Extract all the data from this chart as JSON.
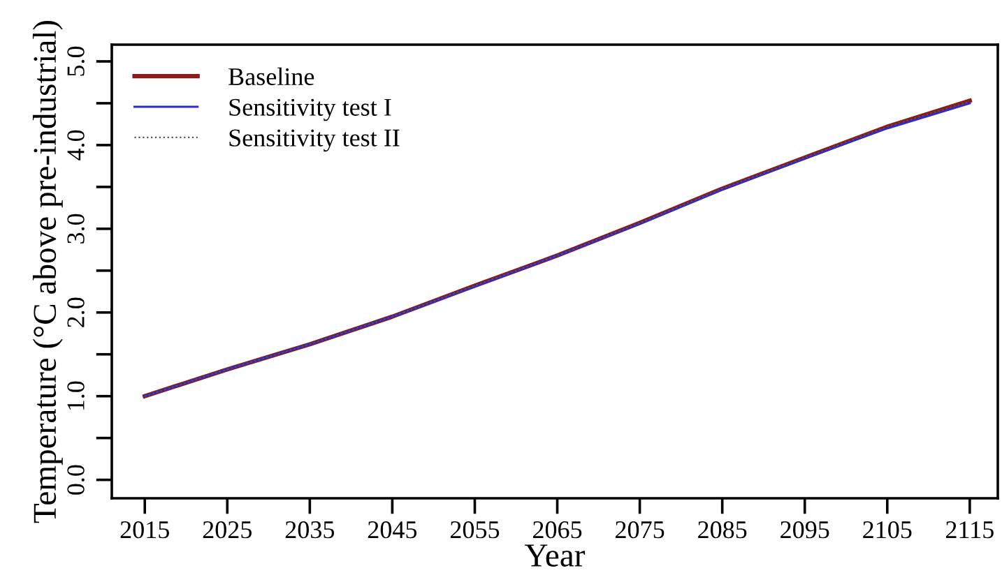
{
  "chart_data": {
    "type": "line",
    "xlabel": "Year",
    "ylabel": "Temperature (°C above pre-industrial)",
    "x": [
      2015,
      2025,
      2035,
      2045,
      2055,
      2065,
      2075,
      2085,
      2095,
      2105,
      2115
    ],
    "series": [
      {
        "name": "Baseline",
        "color": "#8b1a1a",
        "values": [
          1.0,
          1.32,
          1.62,
          1.95,
          2.32,
          2.68,
          3.07,
          3.48,
          3.85,
          4.22,
          4.53
        ]
      },
      {
        "name": "Sensitivity test I",
        "color": "#2a2ad0",
        "values": [
          1.0,
          1.32,
          1.62,
          1.95,
          2.31,
          2.68,
          3.06,
          3.47,
          3.84,
          4.2,
          4.5
        ]
      },
      {
        "name": "Sensitivity test II",
        "color": "#555555",
        "line_style": "dotted",
        "values": [
          1.0,
          1.32,
          1.62,
          1.95,
          2.32,
          2.68,
          3.07,
          3.48,
          3.85,
          4.22,
          4.52
        ]
      }
    ],
    "xlim": [
      2011,
      2118.4
    ],
    "ylim": [
      -0.22,
      5.2
    ],
    "xticks": [
      2015,
      2025,
      2035,
      2045,
      2055,
      2065,
      2075,
      2085,
      2095,
      2105,
      2115
    ],
    "yticks": [
      {
        "value": 0,
        "label": "0.0"
      },
      {
        "value": 0.5,
        "label": null
      },
      {
        "value": 1,
        "label": "1.0"
      },
      {
        "value": 1.5,
        "label": null
      },
      {
        "value": 2,
        "label": "2.0"
      },
      {
        "value": 2.5,
        "label": null
      },
      {
        "value": 3,
        "label": "3.0"
      },
      {
        "value": 3.5,
        "label": null
      },
      {
        "value": 4,
        "label": "4.0"
      },
      {
        "value": 4.5,
        "label": null
      },
      {
        "value": 5,
        "label": "5.0"
      }
    ],
    "grid": false,
    "legend": "top left"
  }
}
